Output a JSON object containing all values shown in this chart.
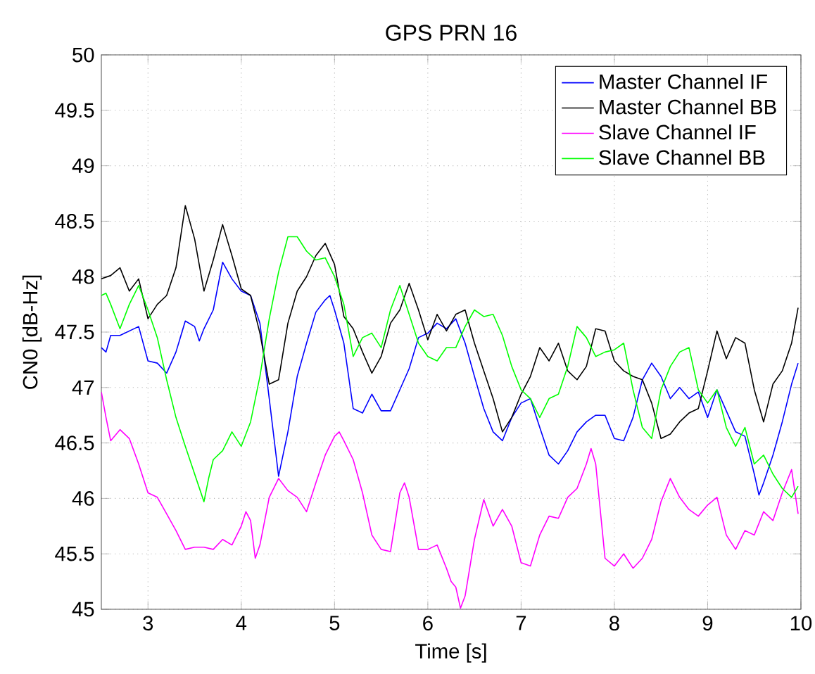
{
  "chart_data": {
    "type": "line",
    "title": "GPS PRN 16",
    "xlabel": "Time [s]",
    "ylabel": "CN0 [dB-Hz]",
    "xlim": [
      2.5,
      10
    ],
    "ylim": [
      45,
      50
    ],
    "xticks": [
      3,
      4,
      5,
      6,
      7,
      8,
      9,
      10
    ],
    "yticks": [
      45,
      45.5,
      46,
      46.5,
      47,
      47.5,
      48,
      48.5,
      49,
      49.5,
      50
    ],
    "grid": true,
    "legend": "top right",
    "marker": "none",
    "line_style": "solid",
    "series": [
      {
        "name": "Master Channel IF",
        "color": "#0000ff",
        "x": [
          2.5,
          2.55,
          2.6,
          2.7,
          2.8,
          2.9,
          3.0,
          3.1,
          3.2,
          3.3,
          3.4,
          3.5,
          3.55,
          3.6,
          3.7,
          3.8,
          3.9,
          4.0,
          4.1,
          4.2,
          4.3,
          4.4,
          4.5,
          4.6,
          4.7,
          4.8,
          4.9,
          4.95,
          5.0,
          5.1,
          5.2,
          5.3,
          5.4,
          5.5,
          5.6,
          5.7,
          5.8,
          5.9,
          6.0,
          6.1,
          6.2,
          6.3,
          6.4,
          6.5,
          6.6,
          6.7,
          6.8,
          6.9,
          7.0,
          7.1,
          7.2,
          7.3,
          7.4,
          7.5,
          7.6,
          7.7,
          7.8,
          7.9,
          8.0,
          8.1,
          8.2,
          8.3,
          8.4,
          8.5,
          8.6,
          8.7,
          8.8,
          8.9,
          9.0,
          9.1,
          9.2,
          9.3,
          9.4,
          9.5,
          9.55,
          9.6,
          9.7,
          9.8,
          9.9,
          9.97
        ],
        "values": [
          47.36,
          47.32,
          47.47,
          47.47,
          47.51,
          47.55,
          47.24,
          47.22,
          47.13,
          47.32,
          47.6,
          47.55,
          47.42,
          47.53,
          47.7,
          48.13,
          47.98,
          47.87,
          47.83,
          47.58,
          46.9,
          46.2,
          46.6,
          47.1,
          47.4,
          47.68,
          47.79,
          47.83,
          47.7,
          47.4,
          46.81,
          46.77,
          46.94,
          46.79,
          46.79,
          46.98,
          47.17,
          47.45,
          47.49,
          47.58,
          47.53,
          47.62,
          47.4,
          47.1,
          46.81,
          46.6,
          46.52,
          46.73,
          46.86,
          46.9,
          46.64,
          46.39,
          46.31,
          46.43,
          46.6,
          46.69,
          46.75,
          46.75,
          46.54,
          46.52,
          46.73,
          47.07,
          47.22,
          47.1,
          46.9,
          47.0,
          46.9,
          46.96,
          46.73,
          46.98,
          46.79,
          46.6,
          46.56,
          46.22,
          46.03,
          46.14,
          46.39,
          46.69,
          47.03,
          47.22
        ]
      },
      {
        "name": "Master Channel BB",
        "color": "#000000",
        "x": [
          2.5,
          2.6,
          2.7,
          2.8,
          2.9,
          3.0,
          3.1,
          3.2,
          3.3,
          3.4,
          3.5,
          3.6,
          3.7,
          3.8,
          3.9,
          4.0,
          4.1,
          4.2,
          4.3,
          4.4,
          4.5,
          4.6,
          4.7,
          4.8,
          4.9,
          5.0,
          5.1,
          5.2,
          5.3,
          5.4,
          5.5,
          5.6,
          5.7,
          5.8,
          5.9,
          6.0,
          6.1,
          6.2,
          6.3,
          6.4,
          6.5,
          6.6,
          6.7,
          6.8,
          6.9,
          7.0,
          7.1,
          7.2,
          7.3,
          7.4,
          7.5,
          7.6,
          7.7,
          7.8,
          7.9,
          8.0,
          8.1,
          8.2,
          8.3,
          8.4,
          8.5,
          8.6,
          8.7,
          8.8,
          8.9,
          9.0,
          9.1,
          9.2,
          9.3,
          9.4,
          9.5,
          9.6,
          9.7,
          9.8,
          9.9,
          9.97
        ],
        "values": [
          47.98,
          48.01,
          48.08,
          47.87,
          47.98,
          47.62,
          47.75,
          47.83,
          48.08,
          48.64,
          48.34,
          47.87,
          48.15,
          48.47,
          48.19,
          47.89,
          47.83,
          47.49,
          47.03,
          47.07,
          47.58,
          47.87,
          48.0,
          48.19,
          48.3,
          48.11,
          47.64,
          47.53,
          47.32,
          47.13,
          47.28,
          47.58,
          47.7,
          47.94,
          47.7,
          47.43,
          47.66,
          47.51,
          47.66,
          47.7,
          47.4,
          47.15,
          46.9,
          46.6,
          46.73,
          46.94,
          47.1,
          47.36,
          47.24,
          47.4,
          47.15,
          47.07,
          47.19,
          47.53,
          47.51,
          47.24,
          47.15,
          47.1,
          47.07,
          46.86,
          46.54,
          46.58,
          46.69,
          46.77,
          46.81,
          47.15,
          47.51,
          47.26,
          47.45,
          47.4,
          46.98,
          46.69,
          47.03,
          47.15,
          47.4,
          47.72
        ]
      },
      {
        "name": "Slave Channel IF",
        "color": "#ff00ff",
        "x": [
          2.5,
          2.55,
          2.6,
          2.7,
          2.8,
          2.9,
          3.0,
          3.1,
          3.2,
          3.3,
          3.4,
          3.5,
          3.6,
          3.7,
          3.8,
          3.9,
          4.0,
          4.05,
          4.1,
          4.15,
          4.2,
          4.3,
          4.4,
          4.5,
          4.6,
          4.7,
          4.8,
          4.9,
          5.0,
          5.05,
          5.1,
          5.2,
          5.3,
          5.4,
          5.5,
          5.6,
          5.7,
          5.75,
          5.8,
          5.9,
          6.0,
          6.1,
          6.2,
          6.25,
          6.3,
          6.35,
          6.4,
          6.5,
          6.6,
          6.7,
          6.8,
          6.9,
          7.0,
          7.1,
          7.2,
          7.3,
          7.4,
          7.5,
          7.6,
          7.7,
          7.75,
          7.8,
          7.9,
          8.0,
          8.1,
          8.2,
          8.3,
          8.4,
          8.5,
          8.6,
          8.7,
          8.8,
          8.9,
          9.0,
          9.1,
          9.2,
          9.3,
          9.4,
          9.5,
          9.6,
          9.7,
          9.8,
          9.9,
          9.97
        ],
        "values": [
          46.96,
          46.73,
          46.52,
          46.62,
          46.54,
          46.31,
          46.05,
          46.01,
          45.86,
          45.71,
          45.54,
          45.56,
          45.56,
          45.54,
          45.63,
          45.58,
          45.75,
          45.88,
          45.8,
          45.46,
          45.58,
          46.01,
          46.18,
          46.07,
          46.01,
          45.88,
          46.14,
          46.39,
          46.56,
          46.6,
          46.52,
          46.35,
          46.05,
          45.67,
          45.54,
          45.52,
          46.05,
          46.14,
          46.01,
          45.54,
          45.54,
          45.58,
          45.37,
          45.25,
          45.2,
          45.01,
          45.12,
          45.63,
          45.99,
          45.75,
          45.9,
          45.75,
          45.42,
          45.39,
          45.67,
          45.84,
          45.82,
          46.01,
          46.09,
          46.31,
          46.45,
          46.31,
          45.46,
          45.39,
          45.5,
          45.37,
          45.46,
          45.63,
          45.97,
          46.18,
          46.01,
          45.9,
          45.84,
          45.94,
          46.01,
          45.67,
          45.54,
          45.71,
          45.67,
          45.88,
          45.8,
          46.05,
          46.26,
          45.86
        ]
      },
      {
        "name": "Slave Channel BB",
        "color": "#00ff00",
        "x": [
          2.5,
          2.55,
          2.6,
          2.7,
          2.8,
          2.9,
          3.0,
          3.1,
          3.2,
          3.3,
          3.4,
          3.5,
          3.6,
          3.65,
          3.7,
          3.8,
          3.9,
          4.0,
          4.1,
          4.2,
          4.3,
          4.4,
          4.5,
          4.6,
          4.7,
          4.8,
          4.9,
          5.0,
          5.1,
          5.2,
          5.3,
          5.4,
          5.5,
          5.6,
          5.7,
          5.8,
          5.9,
          6.0,
          6.1,
          6.2,
          6.3,
          6.4,
          6.5,
          6.6,
          6.7,
          6.8,
          6.9,
          7.0,
          7.1,
          7.2,
          7.3,
          7.4,
          7.5,
          7.6,
          7.7,
          7.8,
          7.9,
          8.0,
          8.1,
          8.2,
          8.3,
          8.4,
          8.5,
          8.6,
          8.7,
          8.8,
          8.9,
          9.0,
          9.1,
          9.2,
          9.3,
          9.4,
          9.5,
          9.6,
          9.7,
          9.8,
          9.9,
          9.97
        ],
        "values": [
          47.83,
          47.85,
          47.75,
          47.53,
          47.75,
          47.92,
          47.7,
          47.45,
          47.07,
          46.73,
          46.47,
          46.22,
          45.97,
          46.18,
          46.35,
          46.43,
          46.6,
          46.47,
          46.69,
          47.1,
          47.62,
          48.04,
          48.36,
          48.36,
          48.23,
          48.15,
          48.17,
          48.0,
          47.75,
          47.28,
          47.45,
          47.49,
          47.36,
          47.7,
          47.92,
          47.66,
          47.4,
          47.28,
          47.24,
          47.36,
          47.36,
          47.55,
          47.7,
          47.64,
          47.66,
          47.47,
          47.19,
          46.98,
          46.9,
          46.73,
          46.9,
          46.94,
          47.19,
          47.55,
          47.45,
          47.28,
          47.32,
          47.34,
          47.4,
          46.98,
          46.64,
          46.54,
          46.98,
          47.19,
          47.32,
          47.36,
          46.98,
          46.86,
          46.98,
          46.64,
          46.47,
          46.64,
          46.31,
          46.39,
          46.22,
          46.09,
          46.01,
          46.11
        ]
      }
    ]
  }
}
